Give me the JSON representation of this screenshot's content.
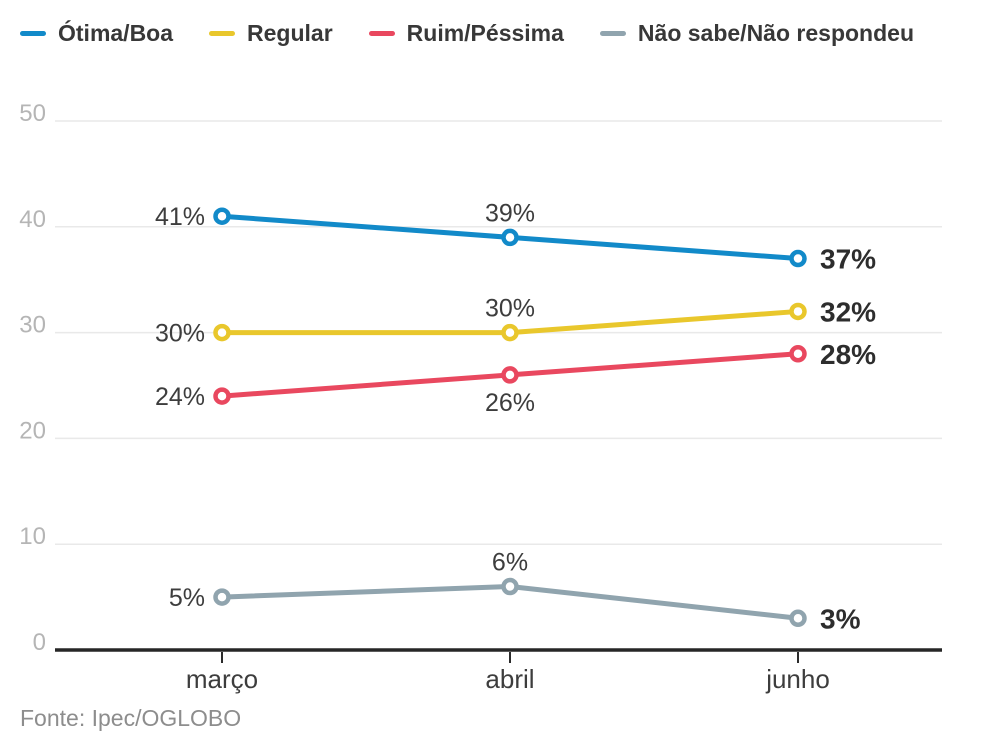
{
  "legend": {
    "note": "legend labels bind to chart_data.series names"
  },
  "chart_data": {
    "type": "line",
    "categories": [
      "março",
      "abril",
      "junho"
    ],
    "series": [
      {
        "name": "Ótima/Boa",
        "color": "#128ac9",
        "values": [
          41,
          39,
          37
        ],
        "labels": [
          "41%",
          "39%",
          "37%"
        ],
        "label_placements": [
          "left",
          "above",
          "right-bold"
        ]
      },
      {
        "name": "Regular",
        "color": "#e9c72c",
        "values": [
          30,
          30,
          32
        ],
        "labels": [
          "30%",
          "30%",
          "32%"
        ],
        "label_placements": [
          "left",
          "above",
          "right-bold"
        ]
      },
      {
        "name": "Ruim/Péssima",
        "color": "#e9485f",
        "values": [
          24,
          26,
          28
        ],
        "labels": [
          "24%",
          "26%",
          "28%"
        ],
        "label_placements": [
          "left",
          "below",
          "right-bold"
        ]
      },
      {
        "name": "Não sabe/Não respondeu",
        "color": "#90a4ae",
        "values": [
          5,
          6,
          3
        ],
        "labels": [
          "5%",
          "6%",
          "3%"
        ],
        "label_placements": [
          "left",
          "above",
          "right-bold"
        ]
      }
    ],
    "yticks": [
      0,
      10,
      20,
      30,
      40,
      50
    ],
    "ylim": [
      0,
      50
    ],
    "grid": true,
    "legend_position": "top",
    "colors": {
      "grid_line": "#e9e9e9",
      "axis_line": "#262626",
      "tick_mark": "#2b2b2b",
      "marker_fill": "#ffffff"
    }
  },
  "source": {
    "text": "Fonte: Ipec/OGLOBO"
  }
}
